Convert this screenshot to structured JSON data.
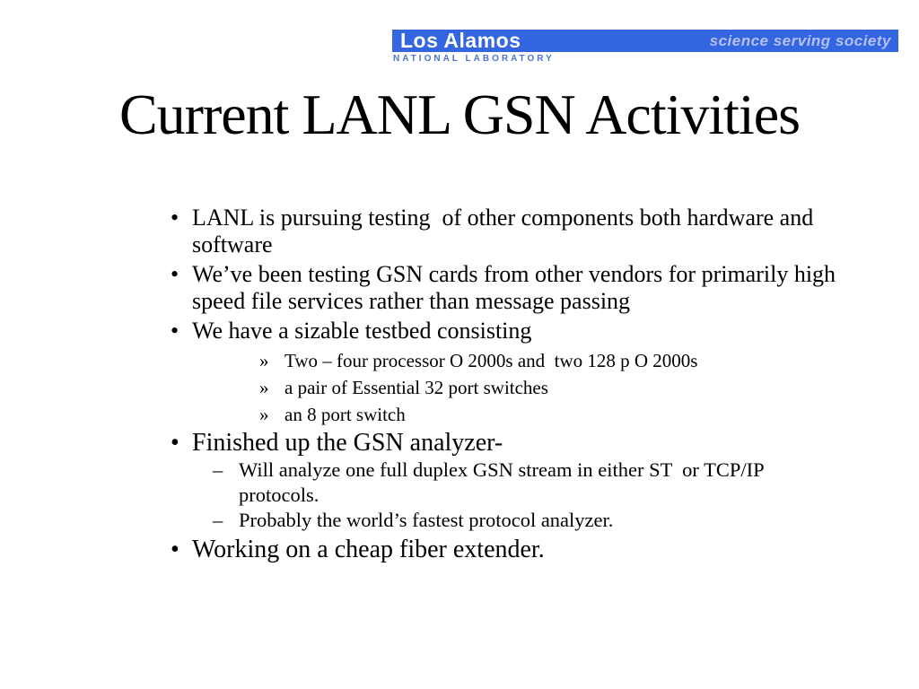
{
  "header": {
    "logo_line1": "Los Alamos",
    "logo_line2": "NATIONAL LABORATORY",
    "tagline": "science serving society",
    "banner_color": "#3566e2",
    "logo_text_color": "#ffffff",
    "natlab_text_color": "#4a72d0",
    "tagline_color": "#b3c1ee"
  },
  "title": "Current LANL GSN Activities",
  "bullets": [
    {
      "level": 1,
      "size": "normal",
      "marker": "•",
      "lines": [
        "LANL is pursuing testing  of other components both hardware and",
        "software"
      ]
    },
    {
      "level": 1,
      "size": "normal",
      "marker": "•",
      "lines": [
        "We’ve been testing GSN cards from other vendors for primarily high",
        "speed file services rather than message passing"
      ]
    },
    {
      "level": 1,
      "size": "normal",
      "marker": "•",
      "lines": [
        "We have a sizable testbed consisting"
      ]
    },
    {
      "level": 3,
      "size": "normal",
      "marker": "»",
      "lines": [
        "Two – four processor O 2000s and  two 128 p O 2000s"
      ]
    },
    {
      "level": 3,
      "size": "normal",
      "marker": "»",
      "lines": [
        "a pair of Essential 32 port switches"
      ]
    },
    {
      "level": 3,
      "size": "normal",
      "marker": "»",
      "lines": [
        "an 8 port switch"
      ]
    },
    {
      "level": 1,
      "size": "large",
      "marker": "•",
      "lines": [
        "Finished up the GSN analyzer-"
      ]
    },
    {
      "level": 2,
      "size": "normal",
      "marker": "–",
      "lines": [
        "Will analyze one full duplex GSN stream in either ST  or TCP/IP",
        "protocols."
      ]
    },
    {
      "level": 2,
      "size": "normal",
      "marker": "–",
      "lines": [
        "Probably the world’s fastest protocol analyzer."
      ]
    },
    {
      "level": 1,
      "size": "large",
      "marker": "•",
      "lines": [
        "Working on a cheap fiber extender."
      ]
    }
  ]
}
